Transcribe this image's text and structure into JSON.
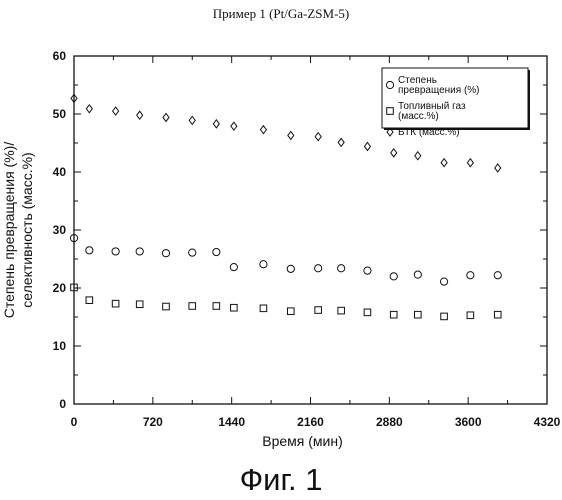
{
  "header": {
    "title": "Пример 1 (Pt/Ga-ZSM-5)"
  },
  "figure_caption": "Фиг. 1",
  "chart_data": {
    "type": "scatter",
    "title": "Пример 1 (Pt/Ga-ZSM-5)",
    "xlabel": "Время (мин)",
    "ylabel": [
      "Степень превращения (%)/",
      "селективность (масс.%)"
    ],
    "xlim": [
      0,
      4320
    ],
    "ylim": [
      0,
      60
    ],
    "xticks": [
      0,
      720,
      1440,
      2160,
      2880,
      3600,
      4320
    ],
    "yticks": [
      0,
      10,
      20,
      30,
      40,
      50,
      60
    ],
    "grid": false,
    "legend_position": "top-right",
    "series": [
      {
        "name": "Степень превращения (%)",
        "legend_lines": [
          "Степень",
          "превращения (%)"
        ],
        "marker": "circle",
        "points": [
          [
            0,
            28.6
          ],
          [
            140,
            26.5
          ],
          [
            380,
            26.3
          ],
          [
            600,
            26.3
          ],
          [
            840,
            26.0
          ],
          [
            1080,
            26.1
          ],
          [
            1300,
            26.2
          ],
          [
            1460,
            23.6
          ],
          [
            1730,
            24.1
          ],
          [
            1980,
            23.3
          ],
          [
            2230,
            23.4
          ],
          [
            2440,
            23.4
          ],
          [
            2680,
            23.0
          ],
          [
            2920,
            22.0
          ],
          [
            3140,
            22.3
          ],
          [
            3380,
            21.1
          ],
          [
            3620,
            22.2
          ],
          [
            3870,
            22.2
          ]
        ]
      },
      {
        "name": "Топливный газ (масс.%)",
        "legend_lines": [
          "Топливный газ",
          "(масс.%)"
        ],
        "marker": "square",
        "points": [
          [
            0,
            20.1
          ],
          [
            140,
            17.9
          ],
          [
            380,
            17.3
          ],
          [
            600,
            17.2
          ],
          [
            840,
            16.8
          ],
          [
            1080,
            16.9
          ],
          [
            1300,
            16.9
          ],
          [
            1460,
            16.6
          ],
          [
            1730,
            16.5
          ],
          [
            1980,
            16.0
          ],
          [
            2230,
            16.2
          ],
          [
            2440,
            16.1
          ],
          [
            2680,
            15.8
          ],
          [
            2920,
            15.4
          ],
          [
            3140,
            15.4
          ],
          [
            3380,
            15.1
          ],
          [
            3620,
            15.3
          ],
          [
            3870,
            15.4
          ]
        ]
      },
      {
        "name": "БТК (масс.%)",
        "legend_lines": [
          "БТК (масс.%)"
        ],
        "marker": "diamond",
        "points": [
          [
            0,
            52.7
          ],
          [
            140,
            50.9
          ],
          [
            380,
            50.5
          ],
          [
            600,
            49.8
          ],
          [
            840,
            49.4
          ],
          [
            1080,
            48.9
          ],
          [
            1300,
            48.3
          ],
          [
            1460,
            47.9
          ],
          [
            1730,
            47.3
          ],
          [
            1980,
            46.3
          ],
          [
            2230,
            46.1
          ],
          [
            2440,
            45.1
          ],
          [
            2680,
            44.4
          ],
          [
            2920,
            43.3
          ],
          [
            3140,
            42.8
          ],
          [
            3380,
            41.6
          ],
          [
            3620,
            41.6
          ],
          [
            3870,
            40.7
          ]
        ]
      }
    ]
  }
}
